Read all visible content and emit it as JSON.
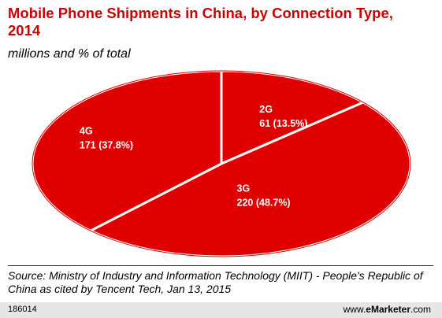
{
  "header": {
    "title": "Mobile Phone Shipments in China, by Connection Type, 2014",
    "subtitle": "millions and % of total"
  },
  "chart_data": {
    "type": "pie",
    "title": "Mobile Phone Shipments in China, by Connection Type, 2014",
    "subtitle": "millions and % of total",
    "slices": [
      {
        "name": "2G",
        "value": 61,
        "percent": 13.5,
        "label_line1": "2G",
        "label_line2": "61 (13.5%)"
      },
      {
        "name": "3G",
        "value": 220,
        "percent": 48.7,
        "label_line1": "3G",
        "label_line2": "220 (48.7%)"
      },
      {
        "name": "4G",
        "value": 171,
        "percent": 37.8,
        "label_line1": "4G",
        "label_line2": "171 (37.8%)"
      }
    ],
    "slice_color": "#e00000",
    "separator_color": "#ffffff"
  },
  "footer": {
    "source": "Source: Ministry of Industry and Information Technology (MIIT) - People's Republic of China as cited by Tencent Tech, Jan 13, 2015",
    "chart_id": "186014",
    "brand_prefix": "www.",
    "brand_name": "eMarketer",
    "brand_suffix": ".com"
  }
}
